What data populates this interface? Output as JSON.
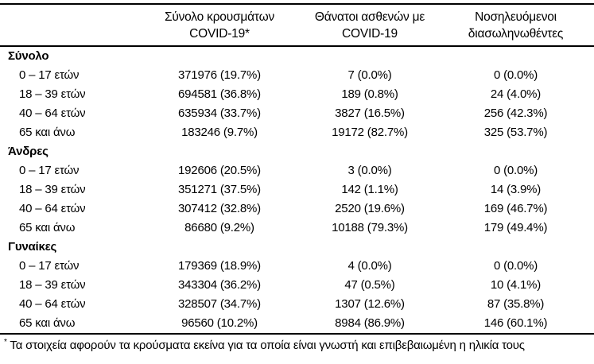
{
  "table": {
    "columns": [
      {
        "line1": "",
        "line2": ""
      },
      {
        "line1": "Σύνολο κρουσμάτων",
        "line2": "COVID-19*"
      },
      {
        "line1": "Θάνατοι ασθενών με",
        "line2": "COVID-19"
      },
      {
        "line1": "Νοσηλευόμενοι",
        "line2": "διασωληνωθέντες"
      }
    ],
    "sections": [
      {
        "label": "Σύνολο",
        "rows": [
          {
            "label": "0 – 17 ετών",
            "cases": "371976 (19.7%)",
            "deaths": "7 (0.0%)",
            "intubated": "0 (0.0%)"
          },
          {
            "label": "18 – 39 ετών",
            "cases": "694581 (36.8%)",
            "deaths": "189 (0.8%)",
            "intubated": "24 (4.0%)"
          },
          {
            "label": "40 – 64 ετών",
            "cases": "635934 (33.7%)",
            "deaths": "3827 (16.5%)",
            "intubated": "256 (42.3%)"
          },
          {
            "label": "65 και άνω",
            "cases": "183246 (9.7%)",
            "deaths": "19172 (82.7%)",
            "intubated": "325 (53.7%)"
          }
        ]
      },
      {
        "label": "Άνδρες",
        "rows": [
          {
            "label": "0 – 17 ετών",
            "cases": "192606 (20.5%)",
            "deaths": "3 (0.0%)",
            "intubated": "0 (0.0%)"
          },
          {
            "label": "18 – 39 ετών",
            "cases": "351271 (37.5%)",
            "deaths": "142 (1.1%)",
            "intubated": "14 (3.9%)"
          },
          {
            "label": "40 – 64 ετών",
            "cases": "307412 (32.8%)",
            "deaths": "2520 (19.6%)",
            "intubated": "169 (46.7%)"
          },
          {
            "label": "65 και άνω",
            "cases": "86680 (9.2%)",
            "deaths": "10188 (79.3%)",
            "intubated": "179 (49.4%)"
          }
        ]
      },
      {
        "label": "Γυναίκες",
        "rows": [
          {
            "label": "0 – 17 ετών",
            "cases": "179369 (18.9%)",
            "deaths": "4 (0.0%)",
            "intubated": "0 (0.0%)"
          },
          {
            "label": "18 – 39 ετών",
            "cases": "343304 (36.2%)",
            "deaths": "47 (0.5%)",
            "intubated": "10 (4.1%)"
          },
          {
            "label": "40 – 64 ετών",
            "cases": "328507 (34.7%)",
            "deaths": "1307 (12.6%)",
            "intubated": "87 (35.8%)"
          },
          {
            "label": "65 και άνω",
            "cases": "96560 (10.2%)",
            "deaths": "8984 (86.9%)",
            "intubated": "146 (60.1%)"
          }
        ]
      }
    ],
    "footnote": {
      "marker": "*",
      "text": "Τα στοιχεία αφορούν τα κρούσματα εκείνα για τα οποία είναι γνωστή και επιβεβαιωμένη η ηλικία τους"
    }
  },
  "colors": {
    "background": "#ffffff",
    "text": "#000000",
    "rule": "#000000"
  }
}
